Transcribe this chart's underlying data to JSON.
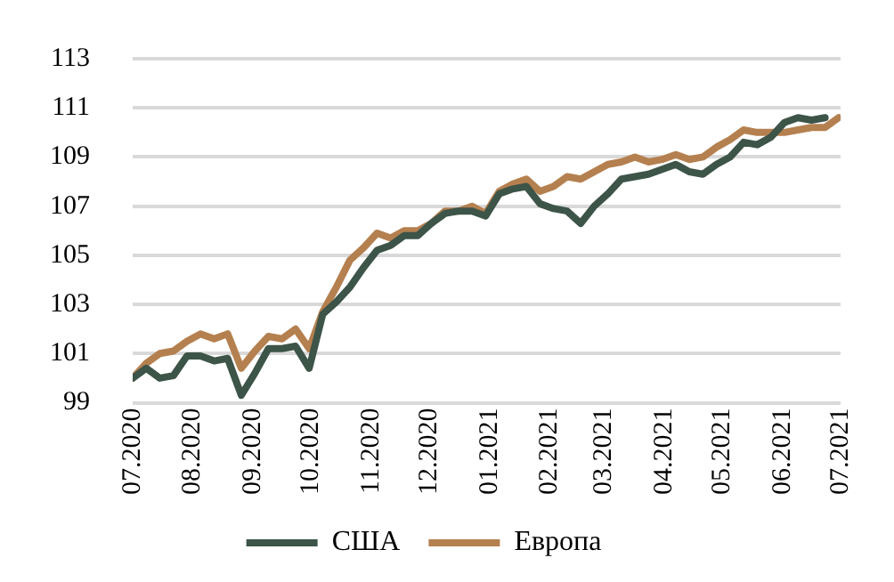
{
  "chart_data": {
    "type": "line",
    "x": [
      "2020-07-01",
      "2020-07-08",
      "2020-07-15",
      "2020-07-22",
      "2020-07-29",
      "2020-08-05",
      "2020-08-12",
      "2020-08-19",
      "2020-08-26",
      "2020-09-02",
      "2020-09-09",
      "2020-09-16",
      "2020-09-23",
      "2020-09-30",
      "2020-10-07",
      "2020-10-14",
      "2020-10-21",
      "2020-10-28",
      "2020-11-04",
      "2020-11-11",
      "2020-11-18",
      "2020-11-25",
      "2020-12-02",
      "2020-12-09",
      "2020-12-16",
      "2020-12-23",
      "2020-12-30",
      "2021-01-06",
      "2021-01-13",
      "2021-01-20",
      "2021-01-27",
      "2021-02-03",
      "2021-02-10",
      "2021-02-17",
      "2021-02-24",
      "2021-03-03",
      "2021-03-10",
      "2021-03-17",
      "2021-03-24",
      "2021-03-31",
      "2021-04-07",
      "2021-04-14",
      "2021-04-21",
      "2021-04-28",
      "2021-05-05",
      "2021-05-12",
      "2021-05-19",
      "2021-05-26",
      "2021-06-02",
      "2021-06-09",
      "2021-06-16",
      "2021-06-23",
      "2021-06-30"
    ],
    "series": [
      {
        "name": "США",
        "color": "#3d5449",
        "values": [
          100.0,
          100.4,
          100.0,
          100.1,
          100.9,
          100.9,
          100.7,
          100.8,
          99.3,
          100.2,
          101.2,
          101.2,
          101.3,
          100.4,
          102.6,
          103.1,
          103.7,
          104.5,
          105.2,
          105.4,
          105.8,
          105.8,
          106.3,
          106.7,
          106.8,
          106.8,
          106.6,
          107.5,
          107.7,
          107.8,
          107.1,
          106.9,
          106.8,
          106.3,
          107.0,
          107.5,
          108.1,
          108.2,
          108.3,
          108.5,
          108.7,
          108.4,
          108.3,
          108.7,
          109.0,
          109.6,
          109.5,
          109.8,
          110.4,
          110.6,
          110.5,
          110.6,
          null
        ]
      },
      {
        "name": "Европа",
        "color": "#b5804f",
        "values": [
          100.0,
          100.6,
          101.0,
          101.1,
          101.5,
          101.8,
          101.6,
          101.8,
          100.4,
          101.1,
          101.7,
          101.6,
          102.0,
          101.2,
          102.7,
          103.7,
          104.8,
          105.3,
          105.9,
          105.7,
          106.0,
          106.0,
          106.3,
          106.8,
          106.8,
          107.0,
          106.7,
          107.6,
          107.9,
          108.1,
          107.6,
          107.8,
          108.2,
          108.1,
          108.4,
          108.7,
          108.8,
          109.0,
          108.8,
          108.9,
          109.1,
          108.9,
          109.0,
          109.4,
          109.7,
          110.1,
          110.0,
          110.0,
          110.0,
          110.1,
          110.2,
          110.2,
          110.6
        ]
      }
    ],
    "xlim": [
      "2020-07-01",
      "2021-07-01"
    ],
    "xticks": [
      {
        "value": "2020-07-01",
        "label": "07.2020"
      },
      {
        "value": "2020-08-01",
        "label": "08.2020"
      },
      {
        "value": "2020-09-01",
        "label": "09.2020"
      },
      {
        "value": "2020-10-01",
        "label": "10.2020"
      },
      {
        "value": "2020-11-01",
        "label": "11.2020"
      },
      {
        "value": "2020-12-01",
        "label": "12.2020"
      },
      {
        "value": "2021-01-01",
        "label": "01.2021"
      },
      {
        "value": "2021-02-01",
        "label": "02.2021"
      },
      {
        "value": "2021-03-01",
        "label": "03.2021"
      },
      {
        "value": "2021-04-01",
        "label": "04.2021"
      },
      {
        "value": "2021-05-01",
        "label": "05.2021"
      },
      {
        "value": "2021-06-01",
        "label": "06.2021"
      },
      {
        "value": "2021-07-01",
        "label": "07.2021"
      }
    ],
    "ylim": [
      99,
      113
    ],
    "yticks": [
      99,
      101,
      103,
      105,
      107,
      109,
      111,
      113
    ],
    "grid": "y",
    "legend": "bottom",
    "marker": "none",
    "line_style": "solid"
  }
}
